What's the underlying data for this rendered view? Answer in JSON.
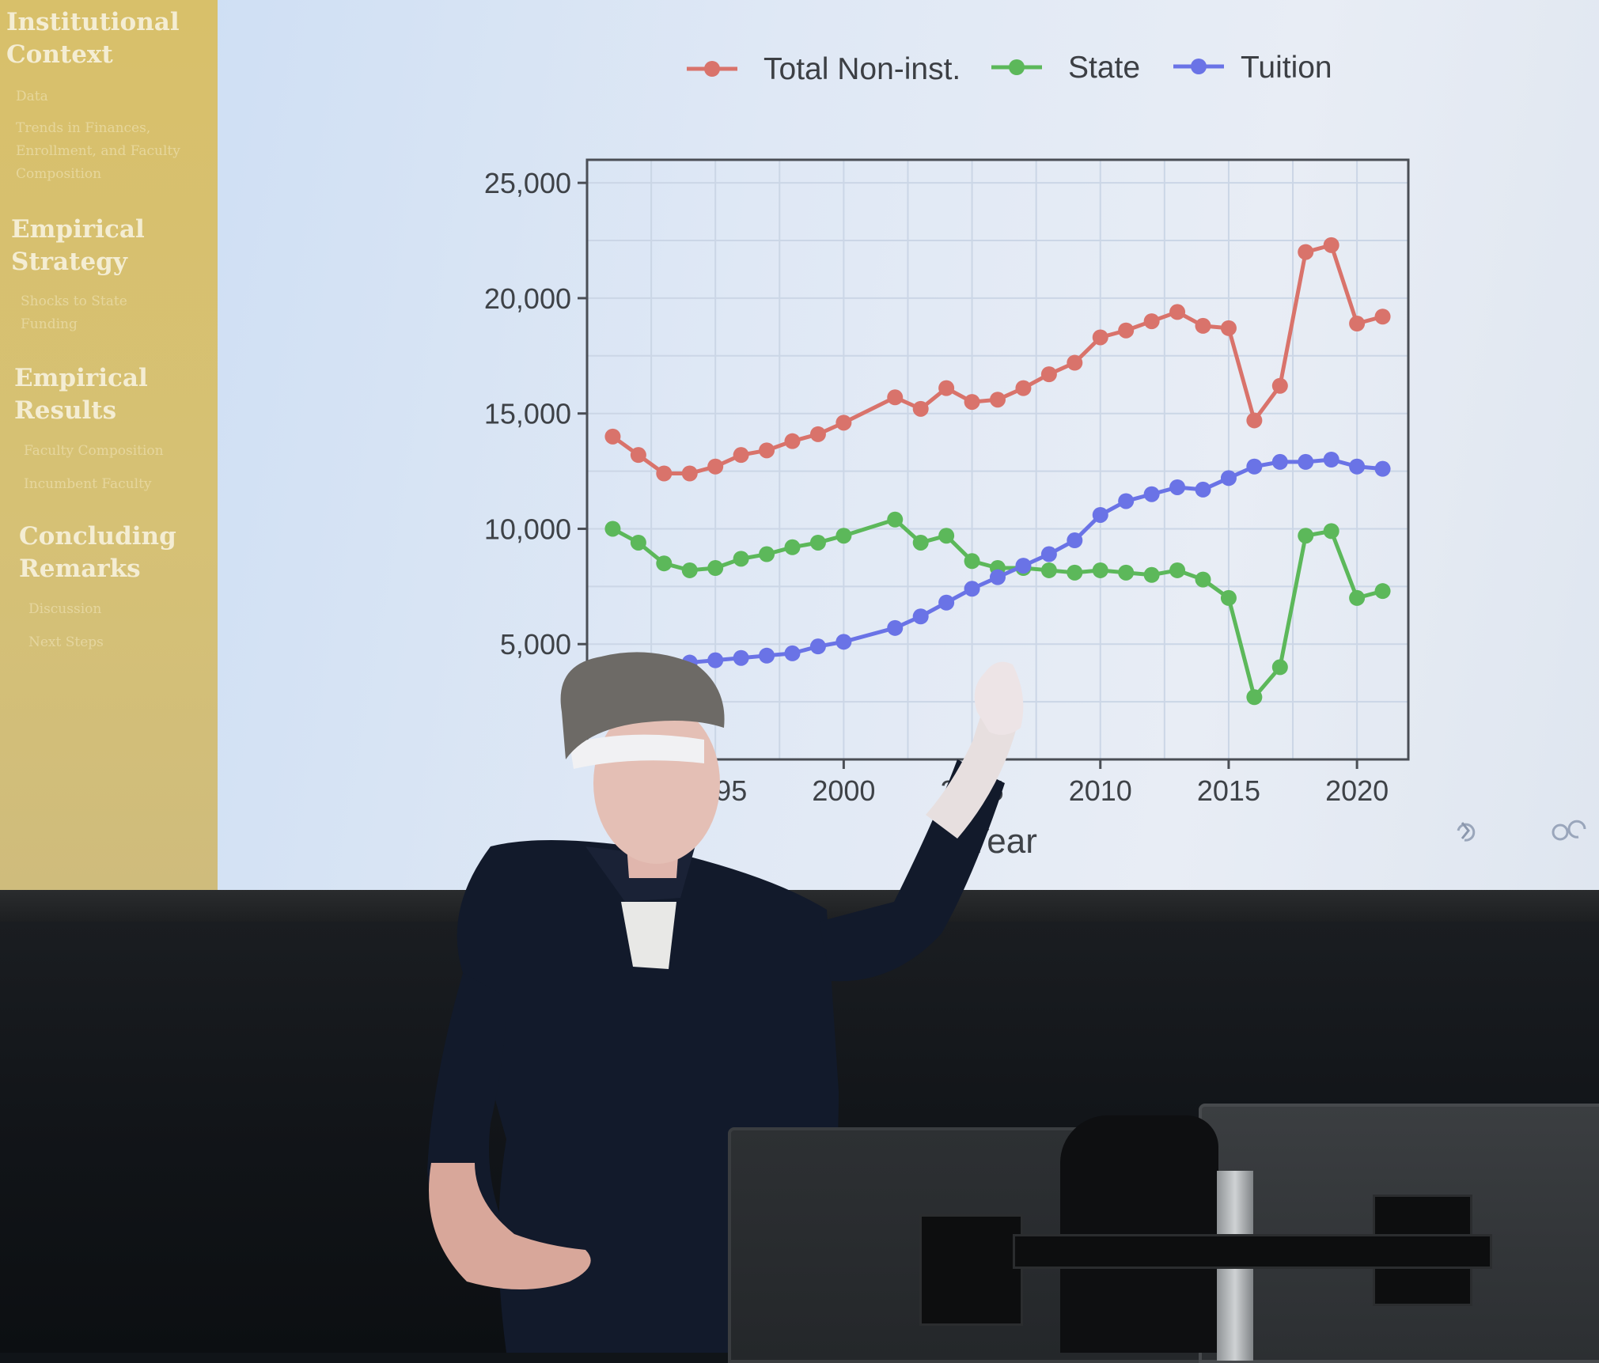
{
  "sidebar": {
    "sections": [
      {
        "label": "Institutional Context",
        "items": [
          "Data",
          "Trends in Finances, Enrollment, and Faculty Composition"
        ]
      },
      {
        "label": "Empirical Strategy",
        "items": [
          "Shocks to State Funding"
        ]
      },
      {
        "label": "Empirical Results",
        "items": [
          "Faculty Composition",
          "Incumbent Faculty"
        ]
      },
      {
        "label": "Concluding Remarks",
        "items": [
          "Discussion",
          "Next Steps"
        ]
      }
    ]
  },
  "chart_data": {
    "type": "line",
    "xlabel": "Year",
    "ylabel": "",
    "xlim": [
      1990,
      2022
    ],
    "ylim": [
      0,
      26000
    ],
    "xticks": [
      1995,
      2000,
      2005,
      2010,
      2015,
      2020
    ],
    "yticks": [
      5000,
      10000,
      15000,
      20000,
      25000
    ],
    "xtick_labels": [
      "1995",
      "2000",
      "2005",
      "2010",
      "2015",
      "2020"
    ],
    "ytick_labels": [
      "5,000",
      "10,000",
      "15,000",
      "20,000",
      "25,000"
    ],
    "legend_position": "top",
    "grid": true,
    "x": [
      1991,
      1992,
      1993,
      1994,
      1995,
      1996,
      1997,
      1998,
      1999,
      2000,
      2002,
      2003,
      2004,
      2005,
      2006,
      2007,
      2008,
      2009,
      2010,
      2011,
      2012,
      2013,
      2014,
      2015,
      2016,
      2017,
      2018,
      2019,
      2020,
      2021
    ],
    "series": [
      {
        "name": "Total Non-inst.",
        "color": "#d9736b",
        "values": [
          14000,
          13200,
          12400,
          12400,
          12700,
          13200,
          13400,
          13800,
          14100,
          14600,
          15700,
          15200,
          16100,
          15500,
          15600,
          16100,
          16700,
          17200,
          18300,
          18600,
          19000,
          19400,
          18800,
          18700,
          14700,
          16200,
          22000,
          22300,
          18900,
          19200
        ]
      },
      {
        "name": "State",
        "color": "#5cb85a",
        "values": [
          10000,
          9400,
          8500,
          8200,
          8300,
          8700,
          8900,
          9200,
          9400,
          9700,
          10400,
          9400,
          9700,
          8600,
          8300,
          8300,
          8200,
          8100,
          8200,
          8100,
          8000,
          8200,
          7800,
          7000,
          2700,
          4000,
          9700,
          9900,
          7000,
          7300
        ]
      },
      {
        "name": "Tuition",
        "color": "#6a73e6",
        "values": [
          3300,
          3700,
          3900,
          4200,
          4300,
          4400,
          4500,
          4600,
          4900,
          5100,
          5700,
          6200,
          6800,
          7400,
          7900,
          8400,
          8900,
          9500,
          10600,
          11200,
          11500,
          11800,
          11700,
          12200,
          12700,
          12900,
          12900,
          13000,
          12700,
          12600
        ]
      }
    ]
  }
}
